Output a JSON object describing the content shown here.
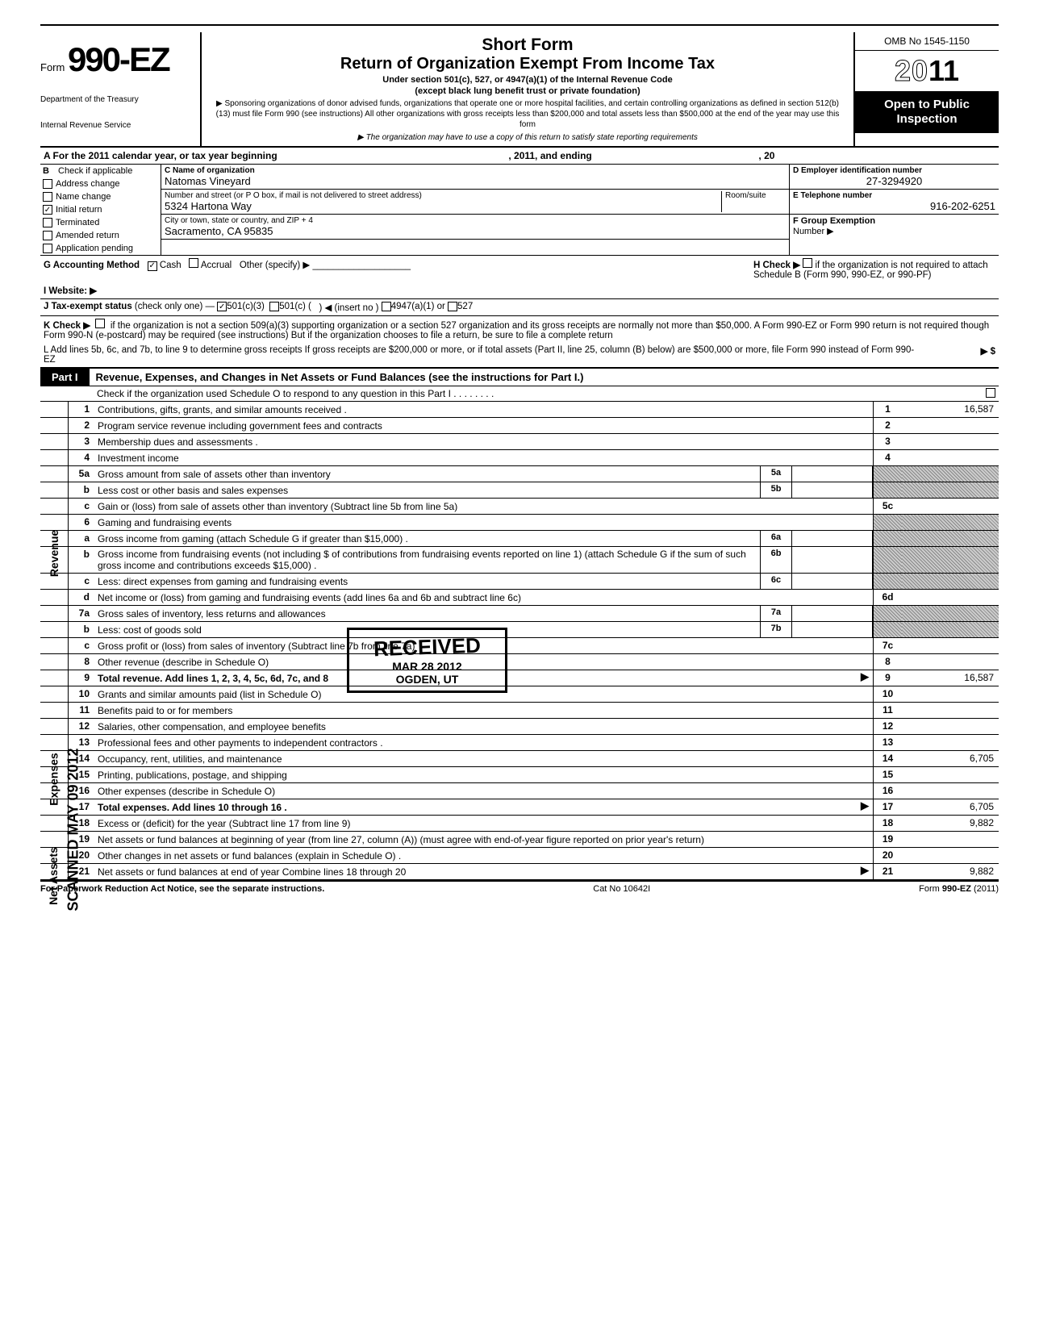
{
  "form": {
    "form_label": "Form",
    "form_number": "990-EZ",
    "dept1": "Department of the Treasury",
    "dept2": "Internal Revenue Service",
    "title1": "Short Form",
    "title2": "Return of Organization Exempt From Income Tax",
    "under": "Under section 501(c), 527, or 4947(a)(1) of the Internal Revenue Code",
    "except": "(except black lung benefit trust or private foundation)",
    "sponsor": "▶ Sponsoring organizations of donor advised funds, organizations that operate one or more hospital facilities, and certain controlling organizations as defined in section 512(b)(13) must file Form 990 (see instructions) All other organizations with gross receipts less than $200,000 and total assets less than $500,000 at the end of the year may use this form",
    "copy_note": "▶ The organization may have to use a copy of this return to satisfy state reporting requirements",
    "omb": "OMB No 1545-1150",
    "year_prefix": "20",
    "year_suffix": "11",
    "open": "Open to Public Inspection"
  },
  "section_a": {
    "label_a": "A  For the 2011 calendar year, or tax year beginning",
    "mid": ", 2011, and ending",
    "end": ", 20"
  },
  "section_b": {
    "header": "B",
    "check_if": "Check if applicable",
    "items": [
      {
        "label": "Address change",
        "checked": false
      },
      {
        "label": "Name change",
        "checked": false
      },
      {
        "label": "Initial return",
        "checked": true
      },
      {
        "label": "Terminated",
        "checked": false
      },
      {
        "label": "Amended return",
        "checked": false
      },
      {
        "label": "Application pending",
        "checked": false
      }
    ]
  },
  "section_c": {
    "name_label": "C  Name of organization",
    "name_val": "Natomas Vineyard",
    "addr_label": "Number and street (or P O  box, if mail is not delivered to street address)",
    "room_label": "Room/suite",
    "addr_val": "5324 Hartona Way",
    "city_label": "City or town, state or country, and ZIP + 4",
    "city_val": "Sacramento, CA 95835"
  },
  "section_d": {
    "label": "D  Employer identification number",
    "val": "27-3294920"
  },
  "section_e": {
    "label": "E  Telephone number",
    "val": "916-202-6251"
  },
  "section_f": {
    "label": "F  Group Exemption",
    "number": "Number ▶"
  },
  "row_g": {
    "label": "G  Accounting Method",
    "cash": "Cash",
    "accrual": "Accrual",
    "other": "Other (specify) ▶",
    "cash_checked": true
  },
  "row_h": {
    "label": "H  Check ▶",
    "text": "if the organization is not required to attach Schedule B (Form 990, 990-EZ, or 990-PF)"
  },
  "row_i": {
    "label": "I   Website: ▶"
  },
  "row_j": {
    "label": "J  Tax-exempt status",
    "note": "(check only one) —",
    "c3": "501(c)(3)",
    "c": "501(c) (",
    "insert": ") ◀ (insert no )",
    "a1": "4947(a)(1) or",
    "527": "527",
    "c3_checked": true
  },
  "row_k": {
    "label": "K  Check ▶",
    "text": "if the organization is not a section 509(a)(3) supporting organization or a section 527 organization and its gross receipts are normally not more than $50,000. A Form 990-EZ or Form 990 return is not required though Form 990-N (e-postcard) may be required (see instructions)  But if the organization chooses to file a return, be sure to file a complete return"
  },
  "row_l": {
    "text": "L  Add lines 5b, 6c, and 7b, to line 9 to determine gross receipts  If gross receipts are $200,000 or more, or if total assets (Part II, line 25, column (B) below) are $500,000 or more, file Form 990 instead of Form 990-EZ",
    "arrow": "▶  $"
  },
  "part1": {
    "tab": "Part I",
    "title": "Revenue, Expenses, and Changes in Net Assets or Fund Balances (see the instructions for Part I.)",
    "check_line": "Check if the organization used Schedule O to respond to any question in this Part I  .  .  .  .  .  .  .  ."
  },
  "side": {
    "revenue": "Revenue",
    "expenses": "Expenses",
    "netassets": "Net Assets"
  },
  "lines": [
    {
      "n": "1",
      "desc": "Contributions, gifts, grants, and similar amounts received .",
      "ln": "1",
      "val": "16,587"
    },
    {
      "n": "2",
      "desc": "Program service revenue including government fees and contracts",
      "ln": "2",
      "val": ""
    },
    {
      "n": "3",
      "desc": "Membership dues and assessments .",
      "ln": "3",
      "val": ""
    },
    {
      "n": "4",
      "desc": "Investment income",
      "ln": "4",
      "val": ""
    },
    {
      "n": "5a",
      "desc": "Gross amount from sale of assets other than inventory",
      "sub": "5a",
      "shaded": true
    },
    {
      "n": "b",
      "desc": "Less  cost or other basis and sales expenses",
      "sub": "5b",
      "shaded": true
    },
    {
      "n": "c",
      "desc": "Gain or (loss) from sale of assets other than inventory (Subtract line 5b from line 5a)",
      "ln": "5c",
      "val": ""
    },
    {
      "n": "6",
      "desc": "Gaming and fundraising events",
      "shaded": true
    },
    {
      "n": "a",
      "desc": "Gross income from gaming (attach Schedule G if greater than $15,000) .",
      "sub": "6a",
      "shaded": true
    },
    {
      "n": "b",
      "desc": "Gross income from fundraising events (not including  $                        of contributions from fundraising events reported on line 1) (attach Schedule G if the sum of such gross income and contributions exceeds $15,000) .",
      "sub": "6b",
      "shaded": true
    },
    {
      "n": "c",
      "desc": "Less: direct expenses from gaming and fundraising events",
      "sub": "6c",
      "shaded": true
    },
    {
      "n": "d",
      "desc": "Net income or (loss) from gaming and fundraising events (add lines 6a and 6b and subtract line 6c)",
      "ln": "6d",
      "val": ""
    },
    {
      "n": "7a",
      "desc": "Gross sales of inventory, less returns and allowances",
      "sub": "7a",
      "shaded": true
    },
    {
      "n": "b",
      "desc": "Less: cost of goods sold",
      "sub": "7b",
      "shaded": true
    },
    {
      "n": "c",
      "desc": "Gross profit or (loss) from sales of inventory (Subtract line 7b from line 7a)",
      "ln": "7c",
      "val": ""
    },
    {
      "n": "8",
      "desc": "Other revenue (describe in Schedule O)",
      "ln": "8",
      "val": ""
    },
    {
      "n": "9",
      "desc": "Total revenue. Add lines 1, 2, 3, 4, 5c, 6d, 7c, and 8",
      "ln": "9",
      "val": "16,587",
      "bold": true,
      "arrow": true
    },
    {
      "n": "10",
      "desc": "Grants and similar amounts paid (list in Schedule O)",
      "ln": "10",
      "val": ""
    },
    {
      "n": "11",
      "desc": "Benefits paid to or for members",
      "ln": "11",
      "val": ""
    },
    {
      "n": "12",
      "desc": "Salaries, other compensation, and employee benefits",
      "ln": "12",
      "val": ""
    },
    {
      "n": "13",
      "desc": "Professional fees and other payments to independent contractors .",
      "ln": "13",
      "val": ""
    },
    {
      "n": "14",
      "desc": "Occupancy, rent, utilities, and maintenance",
      "ln": "14",
      "val": "6,705"
    },
    {
      "n": "15",
      "desc": "Printing, publications, postage, and shipping",
      "ln": "15",
      "val": ""
    },
    {
      "n": "16",
      "desc": "Other expenses (describe in Schedule O)",
      "ln": "16",
      "val": ""
    },
    {
      "n": "17",
      "desc": "Total expenses. Add lines 10 through 16  .",
      "ln": "17",
      "val": "6,705",
      "bold": true,
      "arrow": true
    },
    {
      "n": "18",
      "desc": "Excess or (deficit) for the year (Subtract line 17 from line 9)",
      "ln": "18",
      "val": "9,882"
    },
    {
      "n": "19",
      "desc": "Net assets or fund balances at beginning of year (from line 27, column (A)) (must agree with end-of-year figure reported on prior year's return)",
      "ln": "19",
      "val": ""
    },
    {
      "n": "20",
      "desc": "Other changes in net assets or fund balances (explain in Schedule O) .",
      "ln": "20",
      "val": ""
    },
    {
      "n": "21",
      "desc": "Net assets or fund balances at end of year  Combine lines 18 through 20",
      "ln": "21",
      "val": "9,882",
      "arrow": true
    }
  ],
  "footer": {
    "left": "For Paperwork Reduction Act Notice, see the separate instructions.",
    "mid": "Cat  No  10642I",
    "right": "Form 990-EZ (2011)"
  },
  "stamps": {
    "received": "RECEIVED",
    "received_date": "MAR 28 2012",
    "received_loc": "OGDEN, UT",
    "scanned": "SCANNED MAY 09 2012"
  },
  "colors": {
    "black": "#000000",
    "white": "#ffffff",
    "shade": "#bbbbbb"
  }
}
